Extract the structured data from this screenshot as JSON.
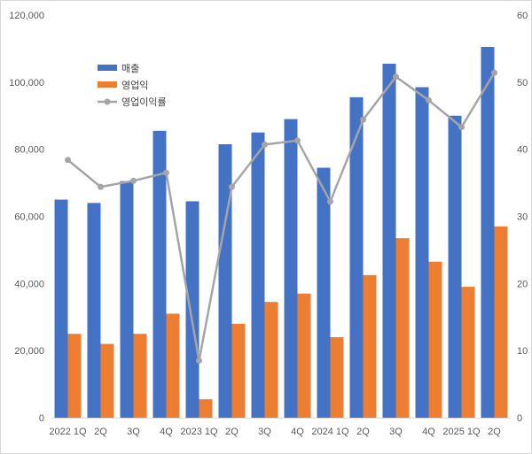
{
  "chart_data": {
    "type": "bar",
    "categories": [
      "2022 1Q",
      "2Q",
      "3Q",
      "4Q",
      "2023 1Q",
      "2Q",
      "3Q",
      "4Q",
      "2024 1Q",
      "2Q",
      "3Q",
      "4Q",
      "2025 1Q",
      "2Q"
    ],
    "series": [
      {
        "name": "매출",
        "kind": "bar",
        "axis": "left",
        "color": "#4472C4",
        "values": [
          65000,
          64000,
          70500,
          85500,
          64500,
          81500,
          85000,
          89000,
          74500,
          95500,
          105500,
          98500,
          90000,
          110500
        ]
      },
      {
        "name": "영업익",
        "kind": "bar",
        "axis": "left",
        "color": "#ED7D31",
        "values": [
          25000,
          22000,
          25000,
          31000,
          5500,
          28000,
          34500,
          37000,
          24000,
          42500,
          53500,
          46500,
          39000,
          57000
        ]
      },
      {
        "name": "영업이익률",
        "kind": "line",
        "axis": "right",
        "color": "#A5A5A5",
        "values": [
          38.4,
          34.4,
          35.3,
          36.5,
          8.5,
          34.4,
          40.7,
          41.3,
          32.2,
          44.4,
          50.8,
          47.3,
          43.3,
          51.4
        ]
      }
    ],
    "left_axis": {
      "ylim": [
        0,
        120000
      ],
      "ticks": [
        "0",
        "20,000",
        "40,000",
        "60,000",
        "80,000",
        "100,000",
        "120,000"
      ]
    },
    "right_axis": {
      "ylim": [
        0,
        60
      ],
      "ticks": [
        "0",
        "10",
        "20",
        "30",
        "40",
        "50",
        "60"
      ]
    },
    "legend_position": "top-left",
    "grid": false
  }
}
